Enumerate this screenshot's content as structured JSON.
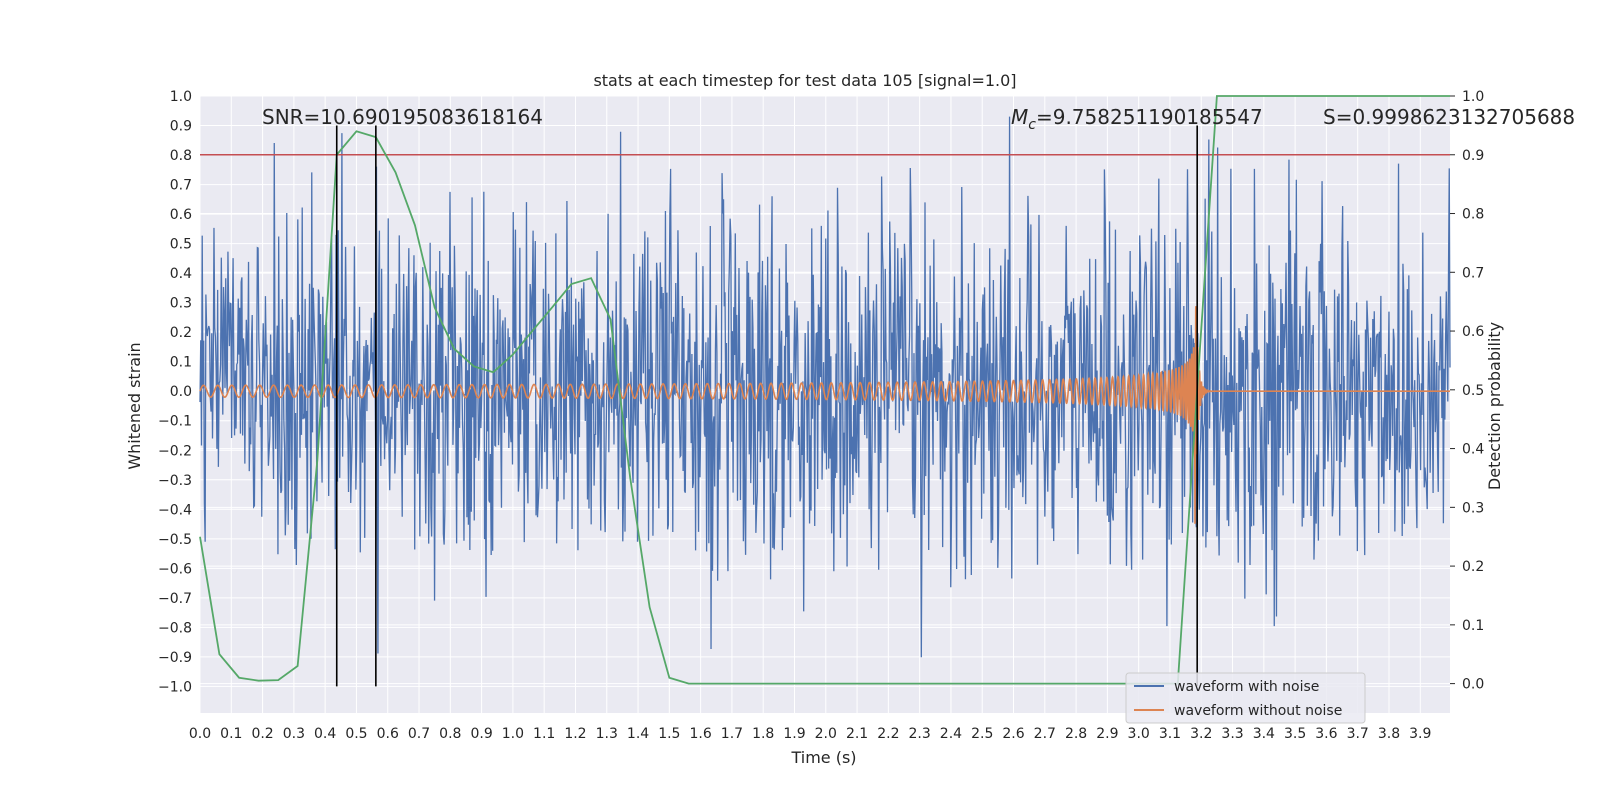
{
  "chart_data": {
    "type": "line",
    "title": "stats at each timestep for test data 105 [signal=1.0]",
    "xlabel": "Time (s)",
    "ylabel": "Whitened strain",
    "y2label": "Detection probability",
    "xlim": [
      0.0,
      3.995
    ],
    "ylim": [
      -1.09,
      1.0
    ],
    "y2lim": [
      -0.05,
      1.0
    ],
    "x_ticks": [
      "0.0",
      "0.1",
      "0.2",
      "0.3",
      "0.4",
      "0.5",
      "0.6",
      "0.7",
      "0.8",
      "0.9",
      "1.0",
      "1.1",
      "1.2",
      "1.3",
      "1.4",
      "1.5",
      "1.6",
      "1.7",
      "1.8",
      "1.9",
      "2.0",
      "2.1",
      "2.2",
      "2.3",
      "2.4",
      "2.5",
      "2.6",
      "2.7",
      "2.8",
      "2.9",
      "3.0",
      "3.1",
      "3.2",
      "3.3",
      "3.4",
      "3.5",
      "3.6",
      "3.7",
      "3.8",
      "3.9"
    ],
    "y_ticks": [
      "1.0",
      "0.9",
      "0.8",
      "0.7",
      "0.6",
      "0.5",
      "0.4",
      "0.3",
      "0.2",
      "0.1",
      "0.0",
      "−0.1",
      "−0.2",
      "−0.3",
      "−0.4",
      "−0.5",
      "−0.6",
      "−0.7",
      "−0.8",
      "−0.9",
      "−1.0"
    ],
    "y2_ticks": [
      "1.0",
      "0.9",
      "0.8",
      "0.7",
      "0.6",
      "0.5",
      "0.4",
      "0.3",
      "0.2",
      "0.1",
      "0.0"
    ],
    "grid": true,
    "legend_position": "bottom-right",
    "colors": {
      "noise": "#4c72b0",
      "clean": "#dd8452",
      "prob": "#55a868",
      "threshold": "#c44e52",
      "vline": "#000000",
      "plot_bg": "#eaeaf2",
      "grid": "#ffffff"
    },
    "annotations": {
      "snr": "SNR=10.690195083618164",
      "mc_prefix": "M",
      "mc_sub": "c",
      "mc_value": "=9.758251190185547",
      "s": "S=0.9998623132705688"
    },
    "series": [
      {
        "name": "waveform with noise",
        "axis": "left",
        "kind": "noise",
        "amplitude_std": 0.3,
        "x_range": [
          0.0,
          3.995
        ]
      },
      {
        "name": "waveform without noise",
        "axis": "left",
        "kind": "chirp",
        "start_amplitude": 0.02,
        "peak_amplitude": 0.27,
        "merger_time": 3.18,
        "start_freq_hz": 22,
        "peak_freq_hz": 160
      },
      {
        "name": "Detection probability",
        "axis": "right",
        "x": [
          0.0,
          0.062,
          0.125,
          0.187,
          0.25,
          0.312,
          0.375,
          0.437,
          0.5,
          0.562,
          0.625,
          0.687,
          0.75,
          0.812,
          0.875,
          0.937,
          1.0,
          1.062,
          1.125,
          1.187,
          1.25,
          1.312,
          1.375,
          1.437,
          1.5,
          1.562,
          1.625,
          1.687,
          1.75,
          3.125,
          3.187,
          3.25,
          3.995
        ],
        "y": [
          0.25,
          0.05,
          0.01,
          0.005,
          0.006,
          0.03,
          0.38,
          0.9,
          0.94,
          0.93,
          0.87,
          0.78,
          0.64,
          0.57,
          0.54,
          0.53,
          0.56,
          0.6,
          0.64,
          0.68,
          0.69,
          0.62,
          0.35,
          0.13,
          0.01,
          0.0,
          0.0,
          0.0,
          0.0,
          0.0,
          0.5,
          1.0,
          1.0
        ]
      },
      {
        "name": "threshold",
        "axis": "right",
        "kind": "hline",
        "y": 0.9
      }
    ],
    "vlines": [
      0.437,
      0.562,
      3.187
    ],
    "legend": [
      "waveform with noise",
      "waveform without noise"
    ]
  }
}
